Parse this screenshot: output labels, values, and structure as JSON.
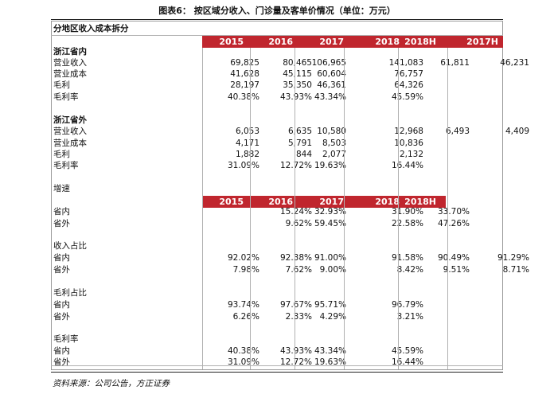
{
  "caption": "图表6：   按区域分收入、门诊量及客单价情况（单位：万元）",
  "table_title": "分地区收入成本拆分",
  "header_years_1": [
    "2015",
    "2016",
    "2017",
    "2018",
    "2018H",
    "2017H"
  ],
  "header_years_2": [
    "2015",
    "2016",
    "2017",
    "2018",
    "2018H"
  ],
  "section_zj_in": {
    "title": "浙江省内",
    "rows": [
      {
        "label": "营业收入",
        "values": [
          "69,825",
          "80,465",
          "106,965",
          "141,083",
          "61,811",
          "46,231"
        ]
      },
      {
        "label": "营业成本",
        "values": [
          "41,628",
          "45,115",
          "60,604",
          "76,757",
          "",
          ""
        ]
      },
      {
        "label": "毛利",
        "values": [
          "28,197",
          "35,350",
          "46,361",
          "64,326",
          "",
          ""
        ]
      },
      {
        "label": "毛利率",
        "values": [
          "40.38%",
          "43.93%",
          "43.34%",
          "45.59%",
          "",
          ""
        ]
      }
    ]
  },
  "section_zj_out": {
    "title": "浙江省外",
    "rows": [
      {
        "label": "营业收入",
        "values": [
          "6,053",
          "6,635",
          "10,580",
          "12,968",
          "6,493",
          "4,409"
        ]
      },
      {
        "label": "营业成本",
        "values": [
          "4,171",
          "5,791",
          "8,503",
          "10,836",
          "",
          ""
        ]
      },
      {
        "label": "毛利",
        "values": [
          "1,882",
          "844",
          "2,077",
          "2,132",
          "",
          ""
        ]
      },
      {
        "label": "毛利率",
        "values": [
          "31.09%",
          "12.72%",
          "19.63%",
          "16.44%",
          "",
          ""
        ]
      }
    ]
  },
  "section_growth": {
    "title": "增速",
    "rows": [
      {
        "label": "省内",
        "values": [
          "",
          "15.24%",
          "32.93%",
          "31.90%",
          "33.70%",
          ""
        ]
      },
      {
        "label": "省外",
        "values": [
          "",
          "9.62%",
          "59.45%",
          "22.58%",
          "47.26%",
          ""
        ]
      }
    ]
  },
  "section_rev_share": {
    "title": "收入占比",
    "rows": [
      {
        "label": "省内",
        "values": [
          "92.02%",
          "92.38%",
          "91.00%",
          "91.58%",
          "90.49%",
          "91.29%"
        ]
      },
      {
        "label": "省外",
        "values": [
          "7.98%",
          "7.62%",
          "9.00%",
          "8.42%",
          "9.51%",
          "8.71%"
        ]
      }
    ]
  },
  "section_gp_share": {
    "title": "毛利占比",
    "rows": [
      {
        "label": "省内",
        "values": [
          "93.74%",
          "97.67%",
          "95.71%",
          "96.79%",
          "",
          ""
        ]
      },
      {
        "label": "省外",
        "values": [
          "6.26%",
          "2.33%",
          "4.29%",
          "3.21%",
          "",
          ""
        ]
      }
    ]
  },
  "section_gm": {
    "title": "毛利率",
    "rows": [
      {
        "label": "省内",
        "values": [
          "40.38%",
          "43.93%",
          "43.34%",
          "45.59%",
          "",
          ""
        ]
      },
      {
        "label": "省外",
        "values": [
          "31.09%",
          "12.72%",
          "19.63%",
          "16.44%",
          "",
          ""
        ]
      }
    ]
  },
  "source": "资料来源：公司公告，方正证券"
}
